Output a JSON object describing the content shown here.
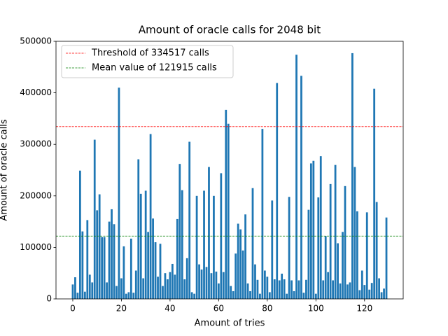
{
  "chart_data": {
    "type": "bar",
    "title": "Amount of oracle calls for 2048 bit",
    "x_label": "Amount of tries",
    "y_label": "Amount of oracle calls",
    "color": "#1f77b4",
    "x": [
      0,
      1,
      2,
      3,
      4,
      5,
      6,
      7,
      8,
      9,
      10,
      11,
      12,
      13,
      14,
      15,
      16,
      17,
      18,
      19,
      20,
      21,
      22,
      23,
      24,
      25,
      26,
      27,
      28,
      29,
      30,
      31,
      32,
      33,
      34,
      35,
      36,
      37,
      38,
      39,
      40,
      41,
      42,
      43,
      44,
      45,
      46,
      47,
      48,
      49,
      50,
      51,
      52,
      53,
      54,
      55,
      56,
      57,
      58,
      59,
      60,
      61,
      62,
      63,
      64,
      65,
      66,
      67,
      68,
      69,
      70,
      71,
      72,
      73,
      74,
      75,
      76,
      77,
      78,
      79,
      80,
      81,
      82,
      83,
      84,
      85,
      86,
      87,
      88,
      89,
      90,
      91,
      92,
      93,
      94,
      95,
      96,
      97,
      98,
      99,
      100,
      101,
      102,
      103,
      104,
      105,
      106,
      107,
      108,
      109,
      110,
      111,
      112,
      113,
      114,
      115,
      116,
      117,
      118,
      119,
      120,
      121,
      122,
      123,
      124,
      125,
      126,
      127,
      128,
      129
    ],
    "values": [
      28000,
      42000,
      12000,
      249000,
      131000,
      14000,
      153000,
      47000,
      32000,
      309000,
      172000,
      203000,
      120000,
      120000,
      32000,
      150000,
      174000,
      145000,
      25000,
      410000,
      40000,
      102000,
      10000,
      13000,
      117000,
      12000,
      55000,
      271000,
      204000,
      40000,
      210000,
      130000,
      320000,
      156000,
      110000,
      43000,
      107000,
      25000,
      50000,
      38000,
      52000,
      68000,
      47000,
      155000,
      262000,
      211000,
      38000,
      79000,
      305000,
      13000,
      10000,
      200000,
      67000,
      57000,
      210000,
      62000,
      256000,
      50000,
      200000,
      53000,
      30000,
      244000,
      52000,
      367000,
      340000,
      25000,
      15000,
      88000,
      146000,
      135000,
      94000,
      164000,
      30000,
      15000,
      215000,
      67000,
      37000,
      10000,
      330000,
      55000,
      43000,
      13000,
      191000,
      38000,
      419000,
      36000,
      49000,
      38000,
      10000,
      198000,
      36000,
      15000,
      474000,
      36000,
      433000,
      12000,
      37000,
      173000,
      263000,
      268000,
      10000,
      197000,
      277000,
      36000,
      122000,
      52000,
      223000,
      36000,
      260000,
      108000,
      30000,
      130000,
      219000,
      28000,
      32000,
      477000,
      256000,
      170000,
      17000,
      55000,
      27000,
      168000,
      18000,
      31000,
      408000,
      188000,
      40000,
      13000,
      20000,
      158000
    ],
    "hlines": [
      {
        "name": "Threshold of 334517 calls",
        "value": 334517,
        "color": "#ff0000"
      },
      {
        "name": "Mean value of 121915 calls",
        "value": 121915,
        "color": "#008000"
      }
    ],
    "legend": "upper left",
    "xlim": [
      -6.9,
      135.9
    ],
    "ylim": [
      0,
      500000
    ],
    "xticks": [
      0,
      20,
      40,
      60,
      80,
      100,
      120
    ],
    "yticks": [
      0,
      100000,
      200000,
      300000,
      400000,
      500000
    ]
  }
}
